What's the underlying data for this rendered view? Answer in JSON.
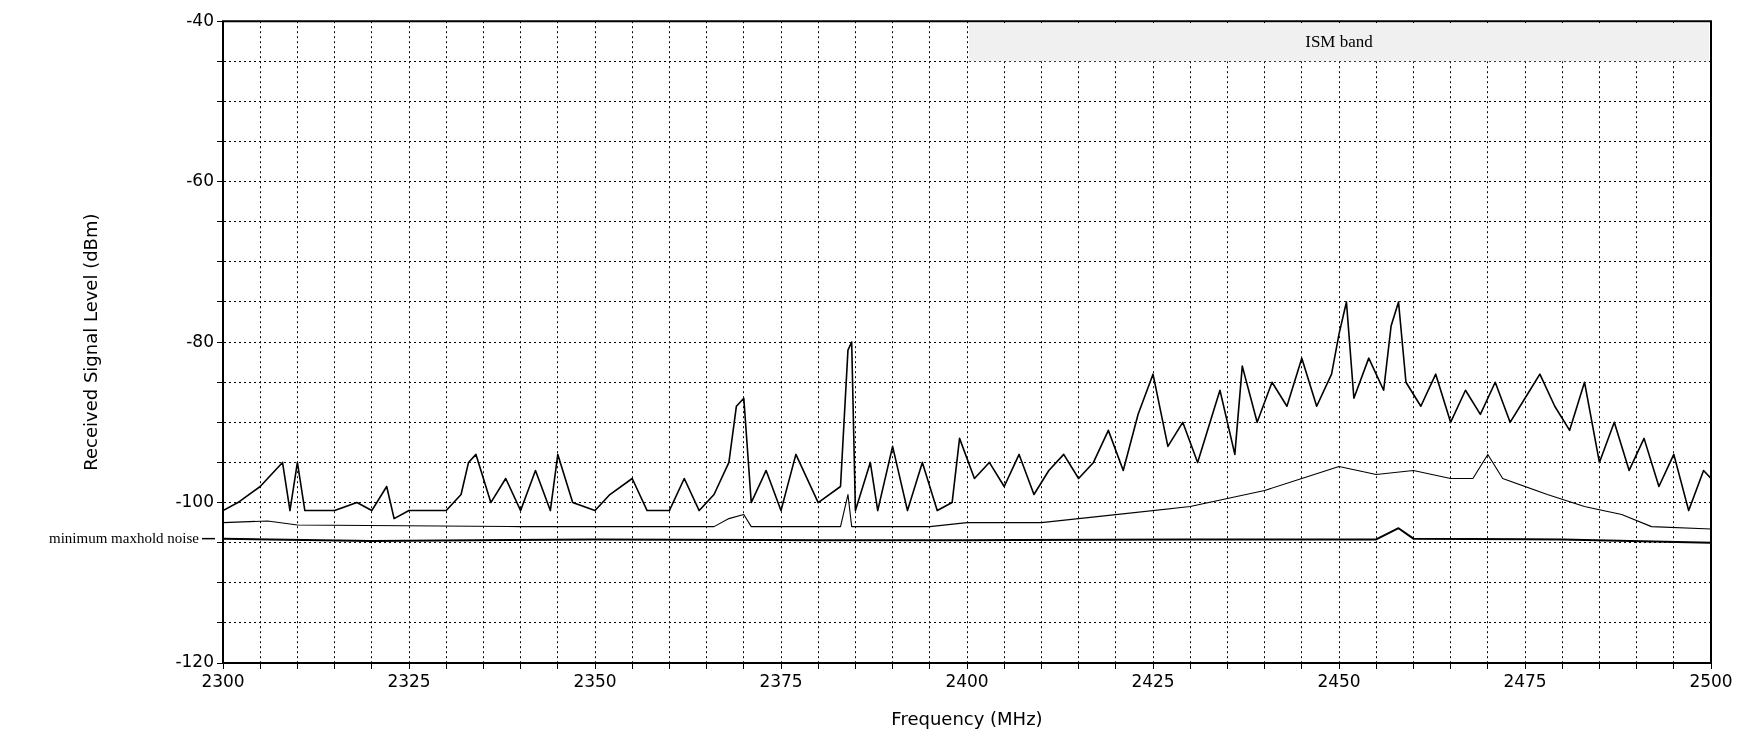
{
  "chart_data": {
    "type": "line",
    "xlabel": "Frequency (MHz)",
    "ylabel": "Received Signal Level (dBm)",
    "xlim": [
      2300,
      2500
    ],
    "ylim": [
      -120,
      -40
    ],
    "xticks": [
      2300,
      {
        "value": 2305,
        "label": null
      },
      {
        "value": 2310,
        "label": null
      },
      {
        "value": 2315,
        "label": null
      },
      {
        "value": 2320,
        "label": null
      },
      2325,
      {
        "value": 2330,
        "label": null
      },
      {
        "value": 2335,
        "label": null
      },
      {
        "value": 2340,
        "label": null
      },
      {
        "value": 2345,
        "label": null
      },
      2350,
      {
        "value": 2355,
        "label": null
      },
      {
        "value": 2360,
        "label": null
      },
      {
        "value": 2365,
        "label": null
      },
      {
        "value": 2370,
        "label": null
      },
      2375,
      {
        "value": 2380,
        "label": null
      },
      {
        "value": 2385,
        "label": null
      },
      {
        "value": 2390,
        "label": null
      },
      {
        "value": 2395,
        "label": null
      },
      2400,
      {
        "value": 2405,
        "label": null
      },
      {
        "value": 2410,
        "label": null
      },
      {
        "value": 2415,
        "label": null
      },
      {
        "value": 2420,
        "label": null
      },
      2425,
      {
        "value": 2430,
        "label": null
      },
      {
        "value": 2435,
        "label": null
      },
      {
        "value": 2440,
        "label": null
      },
      {
        "value": 2445,
        "label": null
      },
      2450,
      {
        "value": 2455,
        "label": null
      },
      {
        "value": 2460,
        "label": null
      },
      {
        "value": 2465,
        "label": null
      },
      {
        "value": 2470,
        "label": null
      },
      2475,
      {
        "value": 2480,
        "label": null
      },
      {
        "value": 2485,
        "label": null
      },
      {
        "value": 2490,
        "label": null
      },
      {
        "value": 2495,
        "label": null
      },
      2500
    ],
    "yticks": [
      -120,
      {
        "value": -115,
        "label": null
      },
      {
        "value": -110,
        "label": null
      },
      {
        "value": -105,
        "label": null
      },
      -100,
      {
        "value": -95,
        "label": null
      },
      {
        "value": -90,
        "label": null
      },
      {
        "value": -85,
        "label": null
      },
      -80,
      {
        "value": -75,
        "label": null
      },
      {
        "value": -70,
        "label": null
      },
      {
        "value": -65,
        "label": null
      },
      -60,
      {
        "value": -55,
        "label": null
      },
      {
        "value": -50,
        "label": null
      },
      {
        "value": -45,
        "label": null
      },
      -40
    ],
    "grid": true,
    "legend": false,
    "marker": "none",
    "line_style": "solid",
    "bands": [
      {
        "axis": "x",
        "from": 2400,
        "to": 2500,
        "label": "ISM band",
        "color": "#f0f0f0"
      }
    ],
    "ref_lines": [
      {
        "axis": "y",
        "value": -104.5,
        "label": "minimum maxhold noise"
      }
    ],
    "series": [
      {
        "color": "#000000",
        "x": [
          2300,
          2302,
          2305,
          2307,
          2308,
          2309,
          2310,
          2311,
          2315,
          2318,
          2320,
          2322,
          2323,
          2325,
          2330,
          2332,
          2333,
          2334,
          2336,
          2338,
          2340,
          2342,
          2344,
          2345,
          2347,
          2350,
          2352,
          2355,
          2357,
          2360,
          2362,
          2364,
          2366,
          2368,
          2369,
          2370,
          2371,
          2373,
          2375,
          2377,
          2380,
          2383,
          2384,
          2384.5,
          2385,
          2387,
          2388,
          2390,
          2392,
          2394,
          2396,
          2398,
          2399,
          2401,
          2403,
          2405,
          2407,
          2409,
          2411,
          2413,
          2415,
          2417,
          2419,
          2421,
          2423,
          2425,
          2427,
          2429,
          2431,
          2433,
          2434,
          2436,
          2437,
          2439,
          2441,
          2443,
          2445,
          2447,
          2449,
          2450,
          2451,
          2452,
          2454,
          2456,
          2457,
          2458,
          2459,
          2461,
          2463,
          2465,
          2467,
          2469,
          2471,
          2473,
          2475,
          2477,
          2479,
          2481,
          2483,
          2485,
          2487,
          2489,
          2491,
          2493,
          2495,
          2497,
          2499,
          2500
        ],
        "values": [
          -101,
          -100,
          -98,
          -96,
          -95,
          -101,
          -95,
          -101,
          -101,
          -100,
          -101,
          -98,
          -102,
          -101,
          -101,
          -99,
          -95,
          -94,
          -100,
          -97,
          -101,
          -96,
          -101,
          -94,
          -100,
          -101,
          -99,
          -97,
          -101,
          -101,
          -97,
          -101,
          -99,
          -95,
          -88,
          -87,
          -100,
          -96,
          -101,
          -94,
          -100,
          -98,
          -81,
          -80,
          -101,
          -95,
          -101,
          -93,
          -101,
          -95,
          -101,
          -100,
          -92,
          -97,
          -95,
          -98,
          -94,
          -99,
          -96,
          -94,
          -97,
          -95,
          -91,
          -96,
          -89,
          -84,
          -93,
          -90,
          -95,
          -89,
          -86,
          -94,
          -83,
          -90,
          -85,
          -88,
          -82,
          -88,
          -84,
          -79,
          -75,
          -87,
          -82,
          -86,
          -78,
          -75,
          -85,
          -88,
          -84,
          -90,
          -86,
          -89,
          -85,
          -90,
          -87,
          -84,
          -88,
          -91,
          -85,
          -95,
          -90,
          -96,
          -92,
          -98,
          -94,
          -101,
          -96,
          -97
        ]
      },
      {
        "color": "#000000",
        "x": [
          2300,
          2306,
          2310,
          2340,
          2366,
          2368,
          2370,
          2371,
          2383,
          2384,
          2384.5,
          2395,
          2400,
          2410,
          2420,
          2430,
          2440,
          2445,
          2450,
          2455,
          2460,
          2465,
          2468,
          2470,
          2472,
          2478,
          2483,
          2488,
          2492,
          2500
        ],
        "values": [
          -102.5,
          -102.3,
          -102.8,
          -103,
          -103,
          -102,
          -101.5,
          -103,
          -103,
          -99,
          -103,
          -103,
          -102.5,
          -102.5,
          -101.5,
          -100.5,
          -98.5,
          -97,
          -95.5,
          -96.5,
          -96,
          -97,
          -97,
          -94,
          -97,
          -99,
          -100.5,
          -101.5,
          -103,
          -103.3
        ]
      },
      {
        "color": "#000000",
        "x": [
          2300,
          2320,
          2350,
          2380,
          2400,
          2430,
          2455,
          2458,
          2460,
          2480,
          2500
        ],
        "values": [
          -104.5,
          -104.8,
          -104.6,
          -104.7,
          -104.7,
          -104.6,
          -104.6,
          -103.2,
          -104.5,
          -104.6,
          -105
        ]
      }
    ]
  }
}
